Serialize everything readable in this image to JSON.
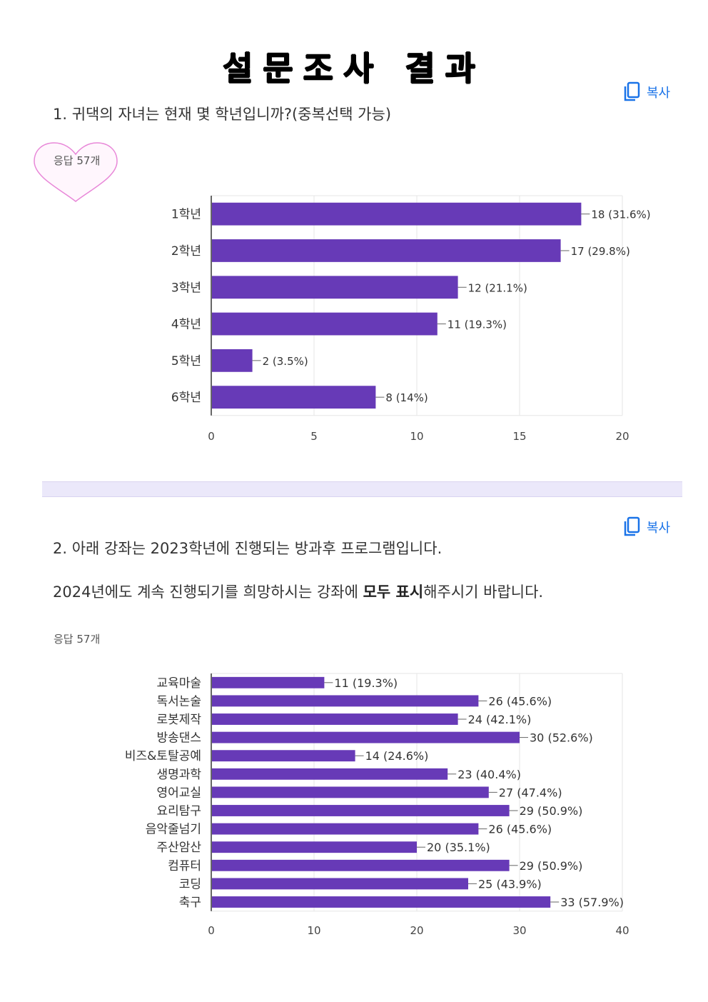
{
  "title": "설문조사 결과",
  "copy_label": "복사",
  "q1": {
    "text": "1. 귀댁의 자녀는 현재 몇 학년입니까?(중복선택 가능)",
    "responses": "응답 57개"
  },
  "q2": {
    "line1": "2. 아래 강좌는 2023학년에 진행되는  방과후 프로그램입니다.",
    "line2_pre": "2024년에도 계속 진행되기를 희망하시는 강좌에 ",
    "line2_bold": "모두 표시",
    "line2_post": "해주시기 바랍니다.",
    "responses": "응답 57개"
  },
  "colors": {
    "bar": "#673ab7",
    "accent": "#1a73e8",
    "heart": "#e887d8"
  },
  "chart_data": [
    {
      "type": "bar",
      "orientation": "horizontal",
      "categories": [
        "1학년",
        "2학년",
        "3학년",
        "4학년",
        "5학년",
        "6학년"
      ],
      "values": [
        18,
        17,
        12,
        11,
        2,
        8
      ],
      "labels": [
        "18 (31.6%)",
        "17 (29.8%)",
        "12 (21.1%)",
        "11 (19.3%)",
        "2 (3.5%)",
        "8 (14%)"
      ],
      "xlim": [
        0,
        20
      ],
      "ticks": [
        0,
        5,
        10,
        15,
        20
      ],
      "grid": true
    },
    {
      "type": "bar",
      "orientation": "horizontal",
      "categories": [
        "교육마술",
        "독서논술",
        "로봇제작",
        "방송댄스",
        "비즈&토탈공예",
        "생명과학",
        "영어교실",
        "요리탐구",
        "음악줄넘기",
        "주산암산",
        "컴퓨터",
        "코딩",
        "축구"
      ],
      "values": [
        11,
        26,
        24,
        30,
        14,
        23,
        27,
        29,
        26,
        20,
        29,
        25,
        33
      ],
      "labels": [
        "11 (19.3%)",
        "26 (45.6%)",
        "24 (42.1%)",
        "30 (52.6%)",
        "14 (24.6%)",
        "23 (40.4%)",
        "27 (47.4%)",
        "29 (50.9%)",
        "26 (45.6%)",
        "20 (35.1%)",
        "29 (50.9%)",
        "25 (43.9%)",
        "33 (57.9%)"
      ],
      "xlim": [
        0,
        40
      ],
      "ticks": [
        0,
        10,
        20,
        30,
        40
      ],
      "grid": true
    }
  ]
}
